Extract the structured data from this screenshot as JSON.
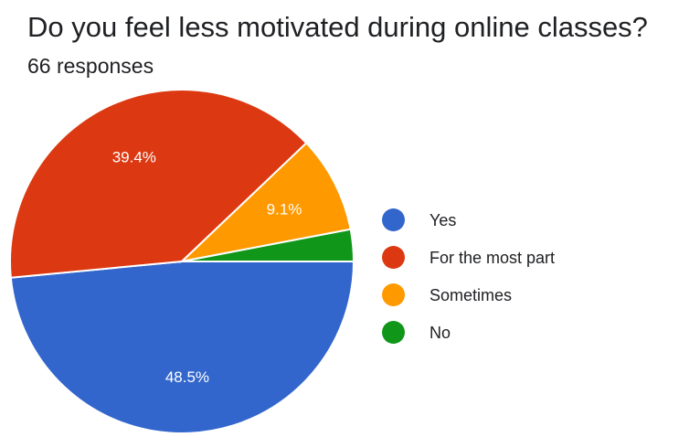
{
  "chart_data": {
    "type": "pie",
    "title": "Do you feel less motivated during online classes?",
    "subtitle": "66 responses",
    "slices": [
      {
        "label": "Yes",
        "value": 48.5,
        "display": "48.5%",
        "color": "#3366cc"
      },
      {
        "label": "For the most part",
        "value": 39.4,
        "display": "39.4%",
        "color": "#dc3912"
      },
      {
        "label": "Sometimes",
        "value": 9.1,
        "display": "9.1%",
        "color": "#ff9900"
      },
      {
        "label": "No",
        "value": 3.0,
        "display": "",
        "color": "#109618"
      }
    ],
    "legend_position": "right"
  }
}
